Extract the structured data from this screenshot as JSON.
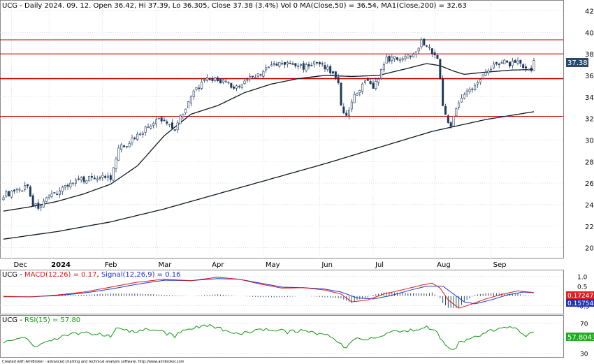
{
  "colors": {
    "candle_up": "#ffffff",
    "candle_down": "#1f3a5c",
    "candle_edge": "#1f3a5c",
    "ma": "#101820",
    "hline": "#c00000",
    "macd": "#d21f1f",
    "signal": "#2233cc",
    "hist": "#1f3a5c",
    "rsi": "#119911",
    "grid": "#c8c8c8",
    "last_price_bg": "#2a4a6c",
    "macd_badge_bg": "#dd2222",
    "signal_badge_bg": "#2233bb",
    "rsi_badge_bg": "#22aa22"
  },
  "header": {
    "title": "UCG - Daily 2024. 09. 12. Open 36.42, Hi 37.39, Lo 36.305, Close 37.38 (3.4%) Vol 0 MA(Close,50) = 36.54, MA1(Close,200) = 32.63"
  },
  "macd_header": {
    "prefix": "UCG - ",
    "macd": "MACD(12,26) = 0.17",
    "sep": ", ",
    "signal": "Signal(12,26,9) = 0.16"
  },
  "rsi_header": {
    "prefix": "UCG - ",
    "rsi": "RSI(15) = 57.80"
  },
  "badges": {
    "last_price": "37.38",
    "macd": "0.17247",
    "signal": "0.157548",
    "rsi": "57.8043"
  },
  "footer": "Created with AmiBroker - advanced charting and technical analysis software. http://www.amibroker.com",
  "chart_data": [
    {
      "type": "candlestick",
      "ylim": [
        19,
        43
      ],
      "y_ticks": [
        "20",
        "22",
        "24",
        "26",
        "28",
        "30",
        "32",
        "34",
        "36",
        "38",
        "40",
        "42"
      ],
      "x_labels": [
        {
          "label": "Dec",
          "bar": 3
        },
        {
          "label": "2024",
          "bar": 17
        },
        {
          "label": "Feb",
          "bar": 37
        },
        {
          "label": "Mar",
          "bar": 57
        },
        {
          "label": "Apr",
          "bar": 77
        },
        {
          "label": "May",
          "bar": 97
        },
        {
          "label": "Jun",
          "bar": 118
        },
        {
          "label": "Jul",
          "bar": 138
        },
        {
          "label": "Aug",
          "bar": 161
        },
        {
          "label": "Sep",
          "bar": 182
        }
      ],
      "bars": 199,
      "close_anchors": [
        [
          0,
          24.9
        ],
        [
          5,
          25.2
        ],
        [
          9,
          25.8
        ],
        [
          11,
          24.0
        ],
        [
          13,
          23.8
        ],
        [
          16,
          24.4
        ],
        [
          20,
          25.2
        ],
        [
          24,
          25.9
        ],
        [
          28,
          26.2
        ],
        [
          32,
          26.5
        ],
        [
          38,
          26.6
        ],
        [
          40,
          26.3
        ],
        [
          43,
          29.2
        ],
        [
          47,
          29.8
        ],
        [
          50,
          30.5
        ],
        [
          54,
          31.2
        ],
        [
          58,
          31.9
        ],
        [
          62,
          31.5
        ],
        [
          64,
          31.0
        ],
        [
          66,
          32.2
        ],
        [
          69,
          33.5
        ],
        [
          72,
          34.8
        ],
        [
          76,
          35.6
        ],
        [
          80,
          35.6
        ],
        [
          84,
          35.2
        ],
        [
          86,
          34.6
        ],
        [
          88,
          35.1
        ],
        [
          92,
          35.8
        ],
        [
          96,
          36.2
        ],
        [
          100,
          36.9
        ],
        [
          104,
          37.1
        ],
        [
          108,
          37.0
        ],
        [
          112,
          36.8
        ],
        [
          116,
          37.1
        ],
        [
          120,
          36.8
        ],
        [
          123,
          36.1
        ],
        [
          125,
          35.5
        ],
        [
          126,
          33.0
        ],
        [
          128,
          32.4
        ],
        [
          131,
          34.0
        ],
        [
          133,
          34.5
        ],
        [
          135,
          35.5
        ],
        [
          138,
          35.0
        ],
        [
          140,
          35.8
        ],
        [
          143,
          37.5
        ],
        [
          147,
          37.6
        ],
        [
          151,
          37.8
        ],
        [
          153,
          38.1
        ],
        [
          156,
          39.1
        ],
        [
          158,
          38.8
        ],
        [
          162,
          37.6
        ],
        [
          163,
          35.6
        ],
        [
          164,
          33.2
        ],
        [
          165,
          32.6
        ],
        [
          167,
          31.1
        ],
        [
          169,
          33.1
        ],
        [
          171,
          34.1
        ],
        [
          174,
          34.6
        ],
        [
          177,
          35.2
        ],
        [
          180,
          36.5
        ],
        [
          184,
          37.1
        ],
        [
          186,
          37.3
        ],
        [
          189,
          37.1
        ],
        [
          192,
          37.4
        ],
        [
          195,
          36.6
        ],
        [
          197,
          36.4
        ],
        [
          198,
          37.38
        ]
      ],
      "ma50_anchors": [
        [
          0,
          23.4
        ],
        [
          10,
          23.8
        ],
        [
          20,
          24.3
        ],
        [
          30,
          25.0
        ],
        [
          40,
          25.9
        ],
        [
          50,
          27.6
        ],
        [
          60,
          30.4
        ],
        [
          70,
          32.4
        ],
        [
          80,
          33.2
        ],
        [
          90,
          34.4
        ],
        [
          100,
          35.2
        ],
        [
          110,
          35.7
        ],
        [
          120,
          36.0
        ],
        [
          130,
          35.9
        ],
        [
          140,
          36.0
        ],
        [
          150,
          36.6
        ],
        [
          158,
          37.1
        ],
        [
          163,
          36.9
        ],
        [
          168,
          36.4
        ],
        [
          172,
          36.1
        ],
        [
          180,
          36.3
        ],
        [
          190,
          36.5
        ],
        [
          198,
          36.54
        ]
      ],
      "ma200_anchors": [
        [
          0,
          20.8
        ],
        [
          20,
          21.5
        ],
        [
          40,
          22.4
        ],
        [
          60,
          23.6
        ],
        [
          80,
          25.0
        ],
        [
          100,
          26.4
        ],
        [
          120,
          27.8
        ],
        [
          140,
          29.3
        ],
        [
          160,
          30.8
        ],
        [
          180,
          31.9
        ],
        [
          198,
          32.63
        ]
      ],
      "horizontal_lines": [
        39.3,
        38.0,
        35.7,
        32.2
      ]
    },
    {
      "type": "line",
      "name": "MACD",
      "ylim": [
        -0.9,
        1.3
      ],
      "y_ticks": [
        "1.0",
        "0.5",
        "-0.5"
      ],
      "macd_anchors": [
        [
          0,
          -0.02
        ],
        [
          10,
          -0.05
        ],
        [
          20,
          0.05
        ],
        [
          30,
          0.2
        ],
        [
          40,
          0.45
        ],
        [
          50,
          0.7
        ],
        [
          60,
          0.85
        ],
        [
          70,
          0.78
        ],
        [
          80,
          0.95
        ],
        [
          88,
          0.85
        ],
        [
          96,
          0.6
        ],
        [
          104,
          0.4
        ],
        [
          112,
          0.42
        ],
        [
          120,
          0.3
        ],
        [
          126,
          0.1
        ],
        [
          130,
          -0.3
        ],
        [
          136,
          -0.2
        ],
        [
          142,
          0.1
        ],
        [
          150,
          0.35
        ],
        [
          156,
          0.55
        ],
        [
          160,
          0.65
        ],
        [
          163,
          0.4
        ],
        [
          166,
          -0.2
        ],
        [
          170,
          -0.62
        ],
        [
          174,
          -0.45
        ],
        [
          180,
          -0.15
        ],
        [
          186,
          0.08
        ],
        [
          192,
          0.26
        ],
        [
          198,
          0.17
        ]
      ],
      "signal_anchors": [
        [
          0,
          -0.04
        ],
        [
          10,
          -0.04
        ],
        [
          20,
          0.02
        ],
        [
          30,
          0.15
        ],
        [
          40,
          0.35
        ],
        [
          50,
          0.6
        ],
        [
          60,
          0.8
        ],
        [
          70,
          0.78
        ],
        [
          80,
          0.88
        ],
        [
          88,
          0.85
        ],
        [
          96,
          0.65
        ],
        [
          104,
          0.45
        ],
        [
          112,
          0.42
        ],
        [
          120,
          0.35
        ],
        [
          126,
          0.2
        ],
        [
          132,
          -0.1
        ],
        [
          138,
          -0.15
        ],
        [
          144,
          0.0
        ],
        [
          152,
          0.3
        ],
        [
          158,
          0.5
        ],
        [
          164,
          0.5
        ],
        [
          168,
          0.1
        ],
        [
          172,
          -0.3
        ],
        [
          176,
          -0.4
        ],
        [
          182,
          -0.2
        ],
        [
          188,
          0.05
        ],
        [
          194,
          0.2
        ],
        [
          198,
          0.16
        ]
      ]
    },
    {
      "type": "line",
      "name": "RSI",
      "ylim": [
        25,
        80
      ],
      "y_ticks": [
        "70",
        "30"
      ],
      "rsi_anchors": [
        [
          0,
          44
        ],
        [
          4,
          50
        ],
        [
          8,
          52
        ],
        [
          11,
          40
        ],
        [
          13,
          38
        ],
        [
          16,
          45
        ],
        [
          20,
          50
        ],
        [
          24,
          55
        ],
        [
          28,
          55
        ],
        [
          32,
          57
        ],
        [
          36,
          55
        ],
        [
          40,
          52
        ],
        [
          42,
          64
        ],
        [
          46,
          60
        ],
        [
          50,
          58
        ],
        [
          54,
          62
        ],
        [
          58,
          60
        ],
        [
          62,
          55
        ],
        [
          64,
          52
        ],
        [
          66,
          58
        ],
        [
          70,
          62
        ],
        [
          74,
          66
        ],
        [
          78,
          67
        ],
        [
          82,
          62
        ],
        [
          86,
          55
        ],
        [
          90,
          58
        ],
        [
          94,
          60
        ],
        [
          98,
          62
        ],
        [
          102,
          62
        ],
        [
          106,
          58
        ],
        [
          110,
          60
        ],
        [
          114,
          58
        ],
        [
          118,
          56
        ],
        [
          122,
          54
        ],
        [
          126,
          42
        ],
        [
          128,
          38
        ],
        [
          131,
          48
        ],
        [
          134,
          50
        ],
        [
          138,
          48
        ],
        [
          142,
          55
        ],
        [
          146,
          60
        ],
        [
          150,
          58
        ],
        [
          154,
          62
        ],
        [
          158,
          66
        ],
        [
          162,
          58
        ],
        [
          164,
          45
        ],
        [
          166,
          40
        ],
        [
          168,
          33
        ],
        [
          170,
          44
        ],
        [
          174,
          48
        ],
        [
          178,
          55
        ],
        [
          182,
          60
        ],
        [
          186,
          62
        ],
        [
          190,
          64
        ],
        [
          194,
          55
        ],
        [
          196,
          54
        ],
        [
          198,
          57.8
        ]
      ]
    }
  ]
}
